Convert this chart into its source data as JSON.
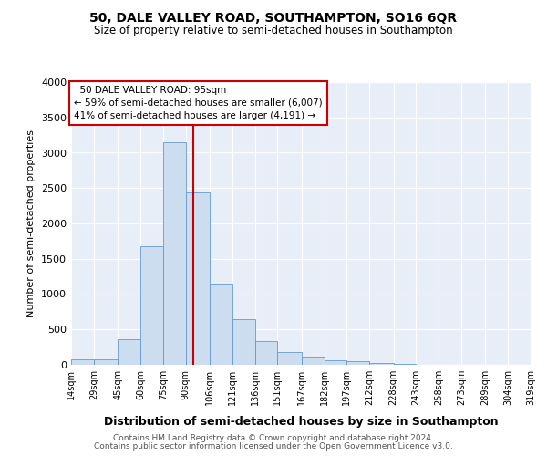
{
  "title": "50, DALE VALLEY ROAD, SOUTHAMPTON, SO16 6QR",
  "subtitle": "Size of property relative to semi-detached houses in Southampton",
  "xlabel": "Distribution of semi-detached houses by size in Southampton",
  "ylabel": "Number of semi-detached properties",
  "bar_color": "#ccddef",
  "bar_edge_color": "#6699cc",
  "background_color": "#e8eef8",
  "vline_x": 95,
  "vline_color": "#cc0000",
  "annotation_title": "50 DALE VALLEY ROAD: 95sqm",
  "annotation_line1": "← 59% of semi-detached houses are smaller (6,007)",
  "annotation_line2": "41% of semi-detached houses are larger (4,191) →",
  "bin_edges": [
    14,
    29,
    45,
    60,
    75,
    90,
    106,
    121,
    136,
    151,
    167,
    182,
    197,
    212,
    228,
    243,
    258,
    273,
    289,
    304,
    319
  ],
  "bin_counts": [
    75,
    80,
    360,
    1680,
    3150,
    2440,
    1150,
    640,
    330,
    175,
    120,
    60,
    50,
    25,
    15,
    5,
    3,
    2,
    1,
    0
  ],
  "ylim": [
    0,
    4000
  ],
  "yticks": [
    0,
    500,
    1000,
    1500,
    2000,
    2500,
    3000,
    3500,
    4000
  ],
  "footer1": "Contains HM Land Registry data © Crown copyright and database right 2024.",
  "footer2": "Contains public sector information licensed under the Open Government Licence v3.0."
}
